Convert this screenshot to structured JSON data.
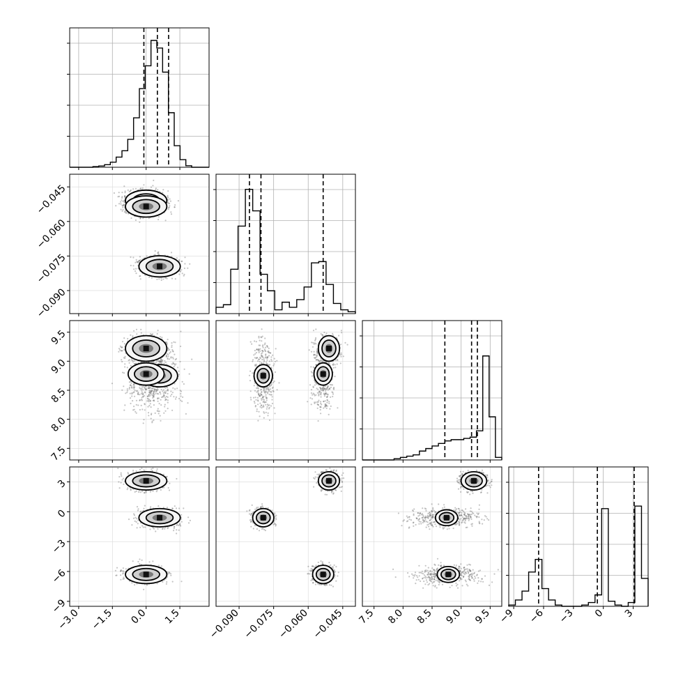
{
  "chart_data": {
    "type": "corner",
    "params": [
      {
        "range": [
          -3.4,
          2.8
        ],
        "ticks": [
          -3.0,
          -1.5,
          0.0,
          1.5
        ],
        "tick_labels": [
          "−3.0",
          "−1.5",
          "0.0",
          "1.5"
        ],
        "quantiles": [
          -0.1,
          0.5,
          1.0
        ]
      },
      {
        "range": [
          -0.1,
          -0.0395
        ],
        "ticks": [
          -0.09,
          -0.075,
          -0.06,
          -0.045
        ],
        "tick_labels": [
          "−0.090",
          "−0.075",
          "−0.060",
          "−0.045"
        ],
        "quantiles": [
          -0.0855,
          -0.0805,
          -0.0535
        ]
      },
      {
        "range": [
          7.3,
          9.7
        ],
        "ticks": [
          7.5,
          8.0,
          8.5,
          9.0,
          9.5
        ],
        "tick_labels": [
          "7.5",
          "8.0",
          "8.5",
          "9.0",
          "9.5"
        ],
        "quantiles": [
          8.72,
          9.18,
          9.28
        ]
      },
      {
        "range": [
          -9.5,
          4.5
        ],
        "ticks": [
          -9,
          -6,
          -3,
          0,
          3
        ],
        "tick_labels": [
          "−9",
          "−6",
          "−3",
          "0",
          "3"
        ],
        "quantiles": [
          -6.5,
          -0.6,
          3.1
        ]
      }
    ],
    "histograms": [
      [
        0,
        0,
        0,
        0,
        0.005,
        0.01,
        0.02,
        0.04,
        0.08,
        0.13,
        0.22,
        0.39,
        0.62,
        0.8,
        1.0,
        0.94,
        0.75,
        0.43,
        0.17,
        0.06,
        0.012,
        0,
        0,
        0
      ],
      [
        0.05,
        0.07,
        0.35,
        0.69,
        0.98,
        0.81,
        0.31,
        0.18,
        0.03,
        0.09,
        0.05,
        0.11,
        0.21,
        0.4,
        0.41,
        0.23,
        0.08,
        0.03,
        0.015
      ],
      [
        0,
        0,
        0,
        0,
        0,
        0.01,
        0.02,
        0.03,
        0.04,
        0.07,
        0.09,
        0.11,
        0.13,
        0.15,
        0.16,
        0.16,
        0.17,
        0.18,
        0.23,
        0.82,
        0.34,
        0.02
      ],
      [
        0.01,
        0.05,
        0.12,
        0.27,
        0.37,
        0.14,
        0.05,
        0.01,
        0,
        0,
        0,
        0.01,
        0.03,
        0.09,
        0.77,
        0.04,
        0.01,
        0,
        0.03,
        0.79,
        0.22
      ]
    ],
    "modes": [
      [
        0.0,
        -0.051,
        9.22,
        3.1
      ],
      [
        0.6,
        -0.0795,
        8.75,
        -0.6
      ],
      [
        0.0,
        -0.0535,
        8.78,
        -6.3
      ]
    ],
    "grid": true,
    "histogram_style": "step",
    "quantile_lines": "dashed"
  }
}
